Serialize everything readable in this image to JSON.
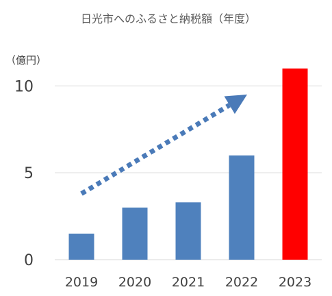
{
  "chart_data": {
    "type": "bar",
    "title": "日光市へのふるさと納税額（年度）",
    "unit_label": "（億円）",
    "categories": [
      "2019",
      "2020",
      "2021",
      "2022",
      "2023"
    ],
    "values": [
      1.5,
      3.0,
      3.3,
      6.0,
      11.0
    ],
    "ylim": [
      0,
      11
    ],
    "yticks": [
      "0",
      "5",
      "10"
    ],
    "ytick_values": [
      0,
      5,
      10
    ],
    "grid": true,
    "colors": {
      "default_bar": "#4f81bd",
      "highlight_bar": "#ff0000",
      "trend_arrow": "#4a7ab8",
      "grid": "#d9d9d9"
    },
    "highlight_category": "2023",
    "annotation": {
      "type": "dotted-trend-arrow",
      "from": {
        "x": "2019",
        "y": 3.8
      },
      "to": {
        "x": "2022",
        "y": 9.5
      }
    }
  }
}
